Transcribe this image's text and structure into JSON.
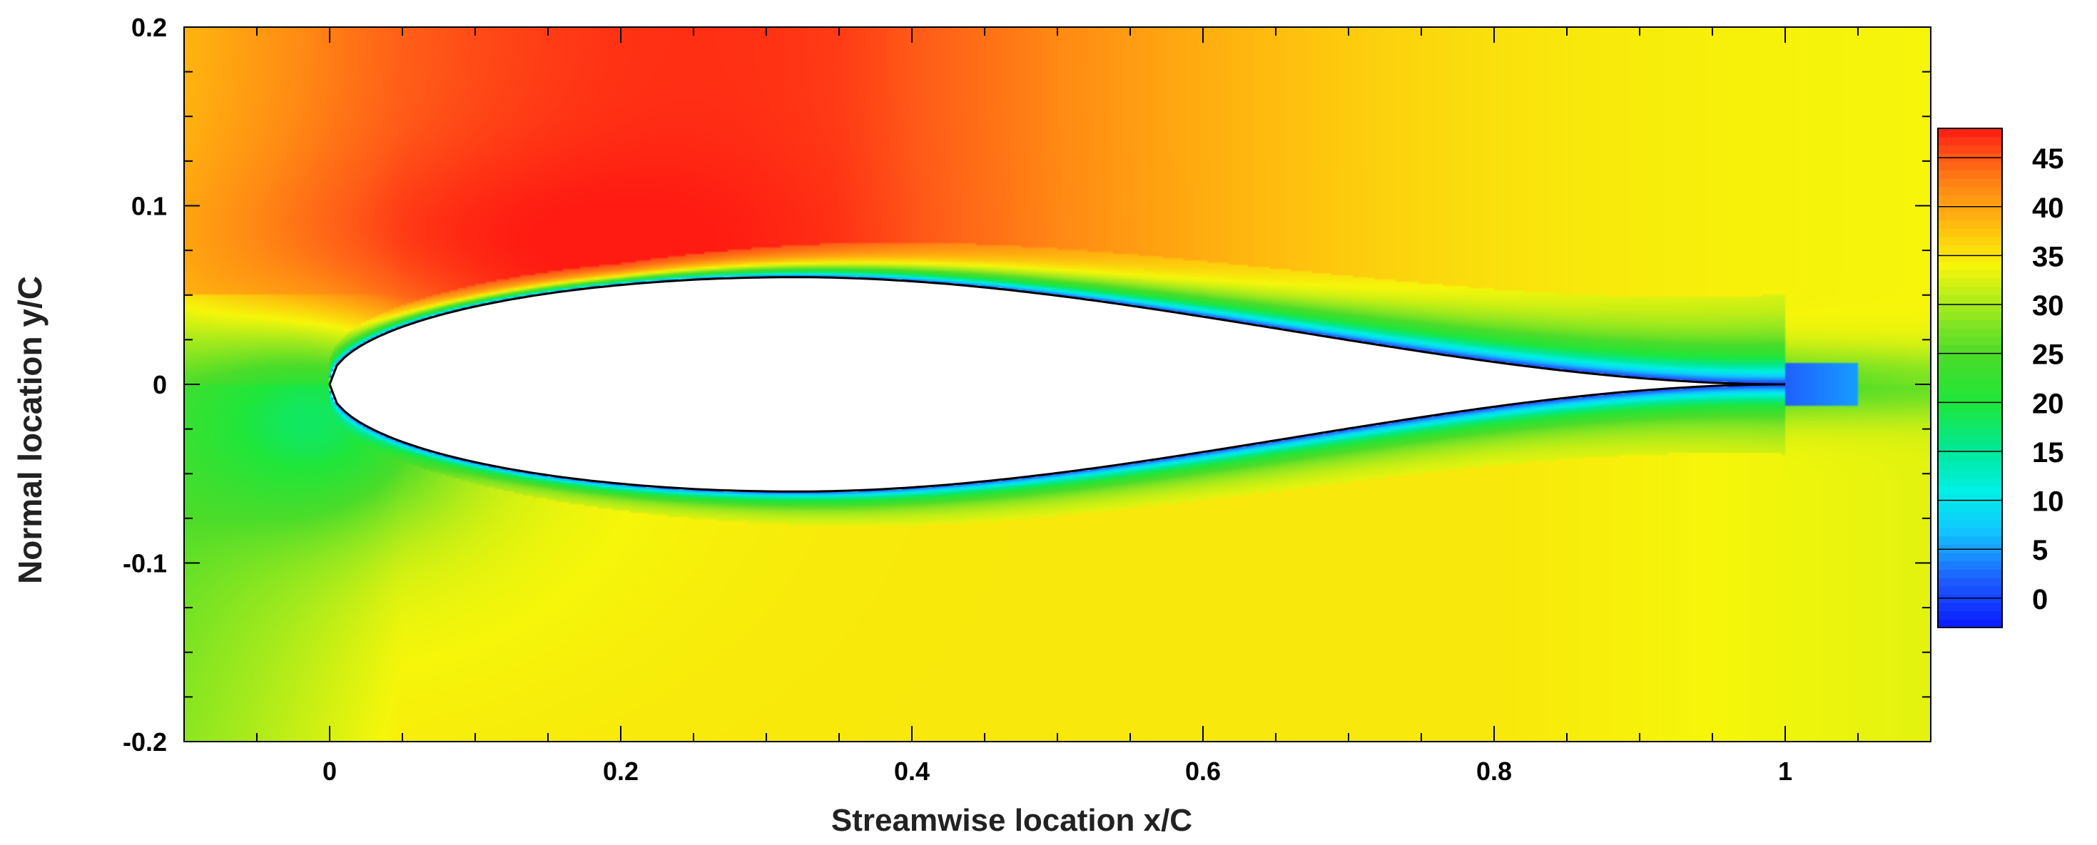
{
  "chart_data": {
    "type": "heatmap",
    "title": "",
    "xlabel": "Streamwise location x/C",
    "ylabel": "Normal location y/C",
    "xlim": [
      -0.1,
      1.1
    ],
    "ylim": [
      -0.2,
      0.2
    ],
    "x_ticks": [
      0,
      0.2,
      0.4,
      0.6,
      0.8,
      1
    ],
    "x_tick_labels": [
      "0",
      "0.2",
      "0.4",
      "0.6",
      "0.8",
      "1"
    ],
    "y_ticks": [
      -0.2,
      -0.1,
      0,
      0.1,
      0.2
    ],
    "y_tick_labels": [
      "-0.2",
      "-0.1",
      "0",
      "0.1",
      "0.2"
    ],
    "grid": false,
    "colorbar": {
      "range": [
        -3,
        48
      ],
      "ticks": [
        0,
        5,
        10,
        15,
        20,
        25,
        30,
        35,
        40,
        45
      ],
      "tick_labels": [
        "0",
        "5",
        "10",
        "15",
        "20",
        "25",
        "30",
        "35",
        "40",
        "45"
      ],
      "placement": "right",
      "colormap": [
        {
          "value": -3,
          "color": "#0a1aff"
        },
        {
          "value": 2,
          "color": "#1f5fff"
        },
        {
          "value": 7,
          "color": "#10c8ff"
        },
        {
          "value": 11,
          "color": "#00f0e6"
        },
        {
          "value": 15,
          "color": "#00e89a"
        },
        {
          "value": 20,
          "color": "#1fe63a"
        },
        {
          "value": 25,
          "color": "#4cdc2a"
        },
        {
          "value": 30,
          "color": "#a6ea1c"
        },
        {
          "value": 34,
          "color": "#f6f60a"
        },
        {
          "value": 38,
          "color": "#ffbe0e"
        },
        {
          "value": 42,
          "color": "#ff8a14"
        },
        {
          "value": 45,
          "color": "#ff5a18"
        },
        {
          "value": 48,
          "color": "#ff1a12"
        }
      ]
    },
    "body": {
      "shape": "teardrop airfoil",
      "leading_edge_x": 0,
      "trailing_edge_x": 1,
      "max_half_thickness": 0.06,
      "max_thickness_x": 0.32
    },
    "field_samples": [
      {
        "x": -0.09,
        "y": 0.19,
        "value": 34
      },
      {
        "x": 0.1,
        "y": 0.15,
        "value": 45
      },
      {
        "x": 0.3,
        "y": 0.18,
        "value": 43
      },
      {
        "x": 0.6,
        "y": 0.18,
        "value": 40
      },
      {
        "x": 0.9,
        "y": 0.18,
        "value": 35
      },
      {
        "x": 0.08,
        "y": 0.07,
        "value": 46
      },
      {
        "x": 0.4,
        "y": 0.075,
        "value": 44
      },
      {
        "x": -0.05,
        "y": 0.0,
        "value": 24
      },
      {
        "x": 0.0,
        "y": -0.05,
        "value": 22
      },
      {
        "x": 0.4,
        "y": -0.1,
        "value": 35
      },
      {
        "x": 0.5,
        "y": -0.18,
        "value": 33
      },
      {
        "x": 1.05,
        "y": 0.0,
        "value": 26
      },
      {
        "x": 1.08,
        "y": -0.18,
        "value": 31
      },
      {
        "x": 0.5,
        "y": 0.055,
        "value": 2
      }
    ]
  }
}
